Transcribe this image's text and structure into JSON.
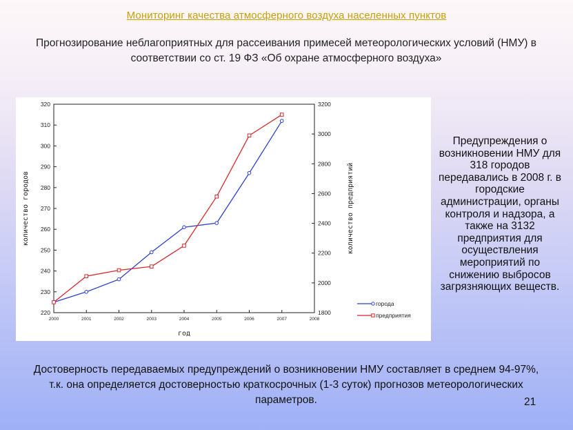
{
  "slide": {
    "title": "Мониторинг качества атмосферного воздуха населенных пунктов",
    "subtitle": "Прогнозирование неблагоприятных для рассеивания примесей метеорологических условий (НМУ) в соответствии со ст. 19 ФЗ «Об охране атмосферного воздуха»",
    "side_text": "Предупреждения о возникновении НМУ для 318 городов передавались в 2008 г. в городские администрации, органы контроля и надзора, а также на 3132 предприятия для осуществления мероприятий по снижению выбросов загрязняющих веществ.",
    "footer": "Достоверность передаваемых предупреждений о возникновении НМУ составляет в среднем 94-97%, т.к. она определяется достоверностью краткосрочных (1-3 суток) прогнозов метеорологических параметров.",
    "page_number": "21"
  },
  "chart_data": {
    "type": "line",
    "x": [
      2000,
      2001,
      2002,
      2003,
      2004,
      2005,
      2006,
      2007
    ],
    "x_ticks": [
      "2000",
      "2001",
      "2002",
      "2003",
      "2004",
      "2005",
      "2006",
      "2007",
      "2008"
    ],
    "xlabel": "год",
    "xlim": [
      2000,
      2008
    ],
    "ylabel_left": "количество городов",
    "ylim_left": [
      220,
      320
    ],
    "yticks_left": [
      "220",
      "230",
      "240",
      "250",
      "260",
      "270",
      "280",
      "290",
      "300",
      "310",
      "320"
    ],
    "ylabel_right": "количество предприятий",
    "ylim_right": [
      1800,
      3200
    ],
    "yticks_right": [
      "1800",
      "2000",
      "2200",
      "2400",
      "2600",
      "2800",
      "3000",
      "3200"
    ],
    "series": [
      {
        "name": "города",
        "axis": "left",
        "color": "#2b3fd0",
        "marker": "circle",
        "values": [
          225,
          230,
          236,
          249,
          261,
          263,
          287,
          312
        ]
      },
      {
        "name": "предприятия",
        "axis": "right",
        "color": "#d8282a",
        "marker": "square",
        "values": [
          1870,
          2045,
          2085,
          2110,
          2250,
          2580,
          2990,
          3130
        ]
      }
    ],
    "legend_position": "bottom-right",
    "grid": false
  }
}
